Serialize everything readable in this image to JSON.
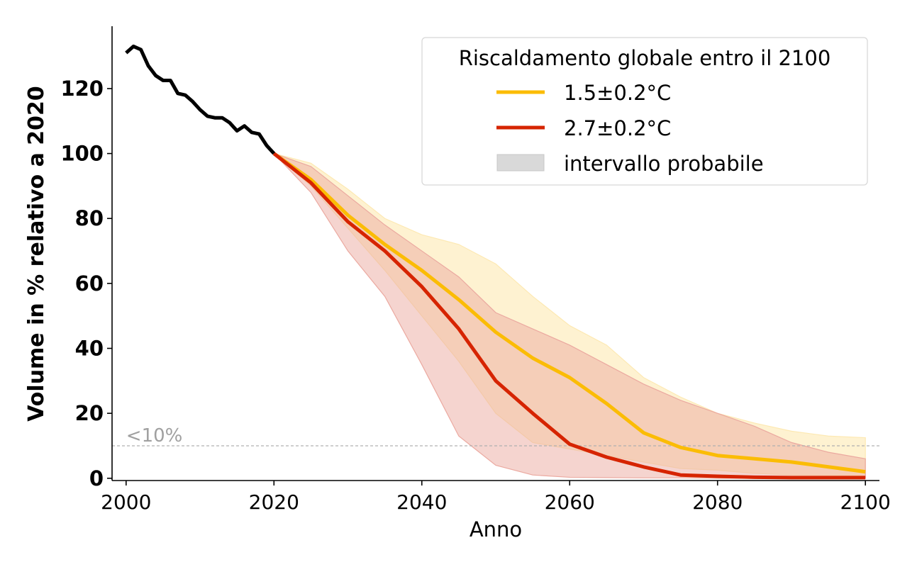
{
  "chart_data": {
    "type": "line",
    "title": "",
    "xlabel": "Anno",
    "ylabel": "Volume in % relativo a 2020",
    "xlim": [
      1998.1,
      2101.9
    ],
    "ylim": [
      -0.7,
      139.2
    ],
    "xticks": [
      2000,
      2020,
      2040,
      2060,
      2080,
      2100
    ],
    "yticks": [
      0,
      20,
      40,
      60,
      80,
      100,
      120
    ],
    "grid": false,
    "legend": {
      "title": "Riscaldamento globale entro il 2100",
      "placement": "top-right",
      "entries": [
        "1.5±0.2°C",
        "2.7±0.2°C",
        "intervallo probabile"
      ]
    },
    "annotation": {
      "text": "<10%",
      "y": 10
    },
    "colors": {
      "history": "#000000",
      "s15": "#fbbc05",
      "s27": "#d62400",
      "band15": "#fde9b3",
      "band27": "#eba9a0",
      "range_legend": "#d9d9d9"
    },
    "history": {
      "x": [
        2000,
        2001,
        2002,
        2003,
        2004,
        2005,
        2006,
        2007,
        2008,
        2009,
        2010,
        2011,
        2012,
        2013,
        2014,
        2015,
        2016,
        2017,
        2018,
        2019,
        2020
      ],
      "y": [
        131,
        133,
        132,
        127,
        124,
        122.5,
        122.5,
        118.5,
        118,
        116,
        113.5,
        111.5,
        111,
        111,
        109.5,
        107,
        108.5,
        106.5,
        106,
        102.5,
        100
      ]
    },
    "x": [
      2020,
      2025,
      2030,
      2035,
      2040,
      2045,
      2050,
      2055,
      2060,
      2065,
      2070,
      2075,
      2080,
      2085,
      2090,
      2095,
      2100
    ],
    "series": [
      {
        "name": "1.5±0.2°C",
        "values": [
          100,
          92,
          81,
          72,
          64,
          55,
          45,
          37,
          31,
          23,
          14,
          9.5,
          7,
          6,
          5,
          3.5,
          2
        ],
        "upper": [
          100,
          97,
          89,
          80,
          75,
          72,
          66,
          56,
          47,
          41,
          31,
          25,
          20,
          17,
          14.5,
          13,
          12.5
        ],
        "lower": [
          100,
          90,
          77,
          64,
          50,
          36,
          20,
          11,
          9,
          7,
          5,
          3,
          2.5,
          1.5,
          1,
          0.9,
          0.8
        ]
      },
      {
        "name": "2.7±0.2°C",
        "values": [
          100,
          91,
          79,
          70,
          59,
          46,
          30,
          20,
          10.5,
          6.5,
          3.5,
          1,
          0.6,
          0.3,
          0.2,
          0.2,
          0.2
        ],
        "upper": [
          100,
          96,
          87,
          78,
          70,
          62,
          51,
          46,
          41,
          35,
          29,
          24,
          20,
          16,
          11,
          8,
          6
        ],
        "lower": [
          100,
          88,
          70,
          56,
          35,
          13,
          4,
          1,
          0.3,
          0.2,
          0.1,
          0.1,
          0,
          0,
          0,
          0,
          0
        ]
      }
    ]
  }
}
